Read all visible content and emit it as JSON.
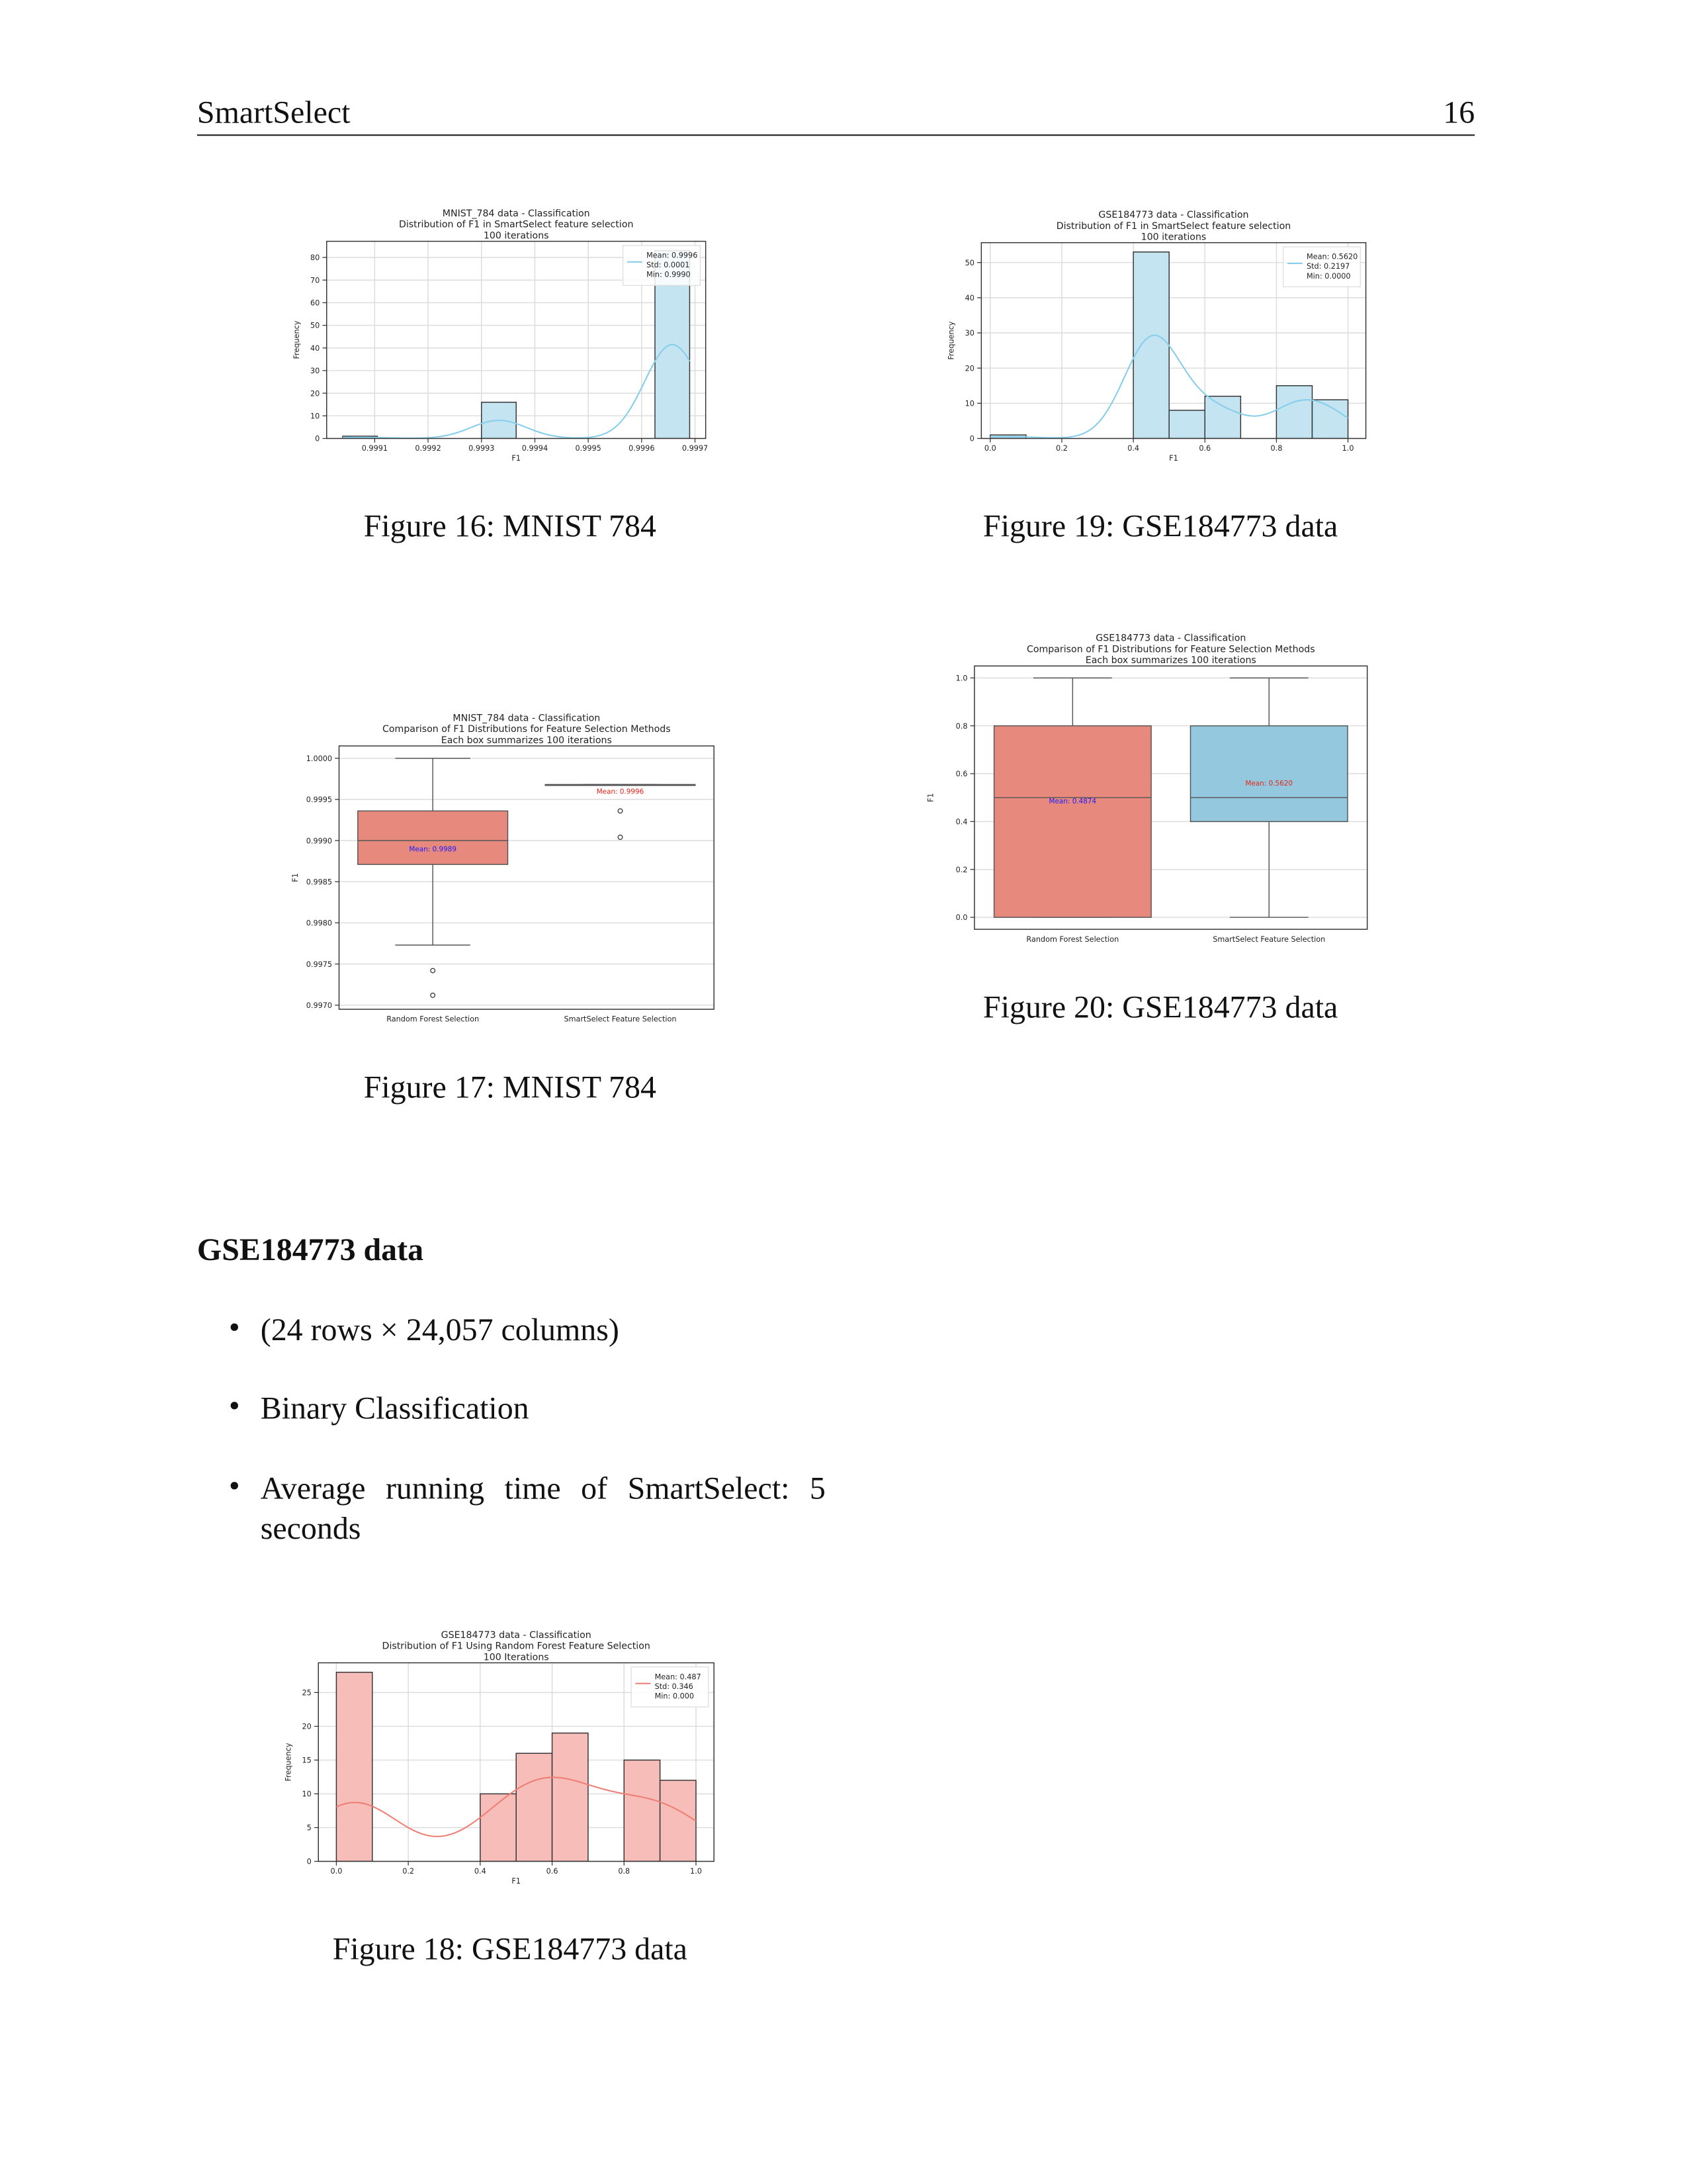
{
  "header": {
    "title": "SmartSelect",
    "page": 16
  },
  "chart_data": [
    {
      "type": "histogram",
      "title": [
        "MNIST_784 data - Classification",
        "Distribution of F1 in SmartSelect feature selection",
        "100 iterations"
      ],
      "caption": "Figure 16: MNIST 784",
      "xlabel": "F1",
      "ylabel": "Frequency",
      "bins": [
        0.99904,
        0.999105,
        0.99917,
        0.999235,
        0.9993,
        0.999365,
        0.99943,
        0.999495,
        0.99956,
        0.999625,
        0.99969
      ],
      "values": [
        1,
        0,
        0,
        0,
        16,
        0,
        0,
        0,
        0,
        83
      ],
      "color": "#c4e4f2",
      "line_color": "#87ceeb",
      "xlim": [
        0.99901,
        0.99972
      ],
      "xticks": [
        0.9991,
        0.9992,
        0.9993,
        0.9994,
        0.9995,
        0.9996,
        0.9997
      ],
      "ylim": [
        0,
        87.15
      ],
      "yticks": [
        0,
        10,
        20,
        30,
        40,
        50,
        60,
        70,
        80
      ],
      "legend_labels": [
        "Mean: 0.9996",
        "Std: 0.0001",
        "Min: 0.9990"
      ],
      "legend_loc": "upper right",
      "grid": true
    },
    {
      "type": "histogram",
      "title": [
        "GSE184773 data - Classification",
        "Distribution of F1 in SmartSelect feature selection",
        "100 iterations"
      ],
      "caption": "Figure 19: GSE184773 data",
      "xlabel": "F1",
      "ylabel": "Frequency",
      "bins": [
        0,
        0.1,
        0.2,
        0.3,
        0.4,
        0.5,
        0.6,
        0.7,
        0.8,
        0.9,
        1
      ],
      "values": [
        1,
        0,
        0,
        0,
        53,
        8,
        12,
        0,
        15,
        11
      ],
      "color": "#c4e4f2",
      "line_color": "#87ceeb",
      "xlim": [
        -0.025,
        1.05
      ],
      "xticks": [
        {
          "value": 0,
          "label": "0.0"
        },
        0.2,
        0.4,
        0.6,
        0.8,
        {
          "value": 1,
          "label": "1.0"
        }
      ],
      "ylim": [
        0,
        55.65
      ],
      "yticks": [
        0,
        10,
        20,
        30,
        40,
        50
      ],
      "legend_labels": [
        "Mean: 0.5620",
        "Std: 0.2197",
        "Min: 0.0000"
      ],
      "legend_loc": "upper right",
      "grid": true
    },
    {
      "type": "box",
      "title": [
        "MNIST_784 data - Classification",
        "Comparison of F1 Distributions for Feature Selection Methods",
        "Each box summarizes 100 iterations"
      ],
      "caption": "Figure 17: MNIST 784",
      "ylabel": "F1",
      "categories": [
        "Random Forest Selection",
        "SmartSelect Feature Selection"
      ],
      "boxes": [
        {
          "whislo": 0.99773,
          "q1": 0.99871,
          "median": 0.999,
          "q3": 0.99936,
          "whishi": 1.0,
          "fliers": [
            0.99742,
            0.99712
          ],
          "mean": 0.9989,
          "mean_label": "Mean: 0.9989",
          "color": "#e8897e",
          "mean_color": "#1a1aff"
        },
        {
          "whislo": 0.99968,
          "q1": 0.99968,
          "median": 0.99968,
          "q3": 0.99968,
          "whishi": 0.99968,
          "fliers": [
            0.99936,
            0.99904
          ],
          "mean": 0.9996,
          "mean_label": "Mean: 0.9996",
          "color": "#93c8df",
          "mean_color": "#e8241a"
        }
      ],
      "ylim": [
        0.99695,
        1.00015
      ],
      "yticks": [
        {
          "value": 0.997,
          "label": "0.9970"
        },
        0.9975,
        {
          "value": 0.998,
          "label": "0.9980"
        },
        0.9985,
        {
          "value": 0.999,
          "label": "0.9990"
        },
        0.9995,
        {
          "value": 1.0,
          "label": "1.0000"
        }
      ],
      "grid": true
    },
    {
      "type": "box",
      "title": [
        "GSE184773 data - Classification",
        "Comparison of F1 Distributions for Feature Selection Methods",
        "Each box summarizes 100 iterations"
      ],
      "caption": "Figure 20: GSE184773 data",
      "ylabel": "F1",
      "categories": [
        "Random Forest Selection",
        "SmartSelect Feature Selection"
      ],
      "boxes": [
        {
          "whislo": 0,
          "q1": 0,
          "median": 0.5,
          "q3": 0.8,
          "whishi": 1.0,
          "fliers": [],
          "mean": 0.4874,
          "mean_label": "Mean: 0.4874",
          "color": "#e8897e",
          "mean_color": "#1a1aff"
        },
        {
          "whislo": 0,
          "q1": 0.4,
          "median": 0.5,
          "q3": 0.8,
          "whishi": 1.0,
          "fliers": [],
          "mean": 0.562,
          "mean_label": "Mean: 0.5620",
          "color": "#93c8df",
          "mean_color": "#e8241a"
        }
      ],
      "ylim": [
        -0.05,
        1.05
      ],
      "yticks": [
        {
          "value": 0,
          "label": "0.0"
        },
        0.2,
        0.4,
        0.6,
        0.8,
        {
          "value": 1,
          "label": "1.0"
        }
      ],
      "grid": true
    },
    {
      "type": "histogram",
      "title": [
        "GSE184773 data - Classification",
        "Distribution of F1 Using Random Forest Feature Selection",
        "100 Iterations"
      ],
      "caption": "Figure 18: GSE184773 data",
      "xlabel": "F1",
      "ylabel": "Frequency",
      "bins": [
        0,
        0.1,
        0.2,
        0.3,
        0.4,
        0.5,
        0.6,
        0.7,
        0.8,
        0.9,
        1
      ],
      "values": [
        28,
        0,
        0,
        0,
        10,
        16,
        19,
        0,
        15,
        12
      ],
      "color": "#f7bdb8",
      "line_color": "#ef7f76",
      "xlim": [
        -0.05,
        1.05
      ],
      "xticks": [
        {
          "value": 0,
          "label": "0.0"
        },
        0.2,
        0.4,
        0.6,
        0.8,
        {
          "value": 1,
          "label": "1.0"
        }
      ],
      "ylim": [
        0,
        29.4
      ],
      "yticks": [
        0,
        5,
        10,
        15,
        20,
        25
      ],
      "legend_labels": [
        "Mean: 0.487",
        "Std: 0.346",
        "Min: 0.000"
      ],
      "legend_loc": "upper right",
      "grid": true
    }
  ],
  "section": {
    "heading": "GSE184773 data",
    "bullets": [
      "(24 rows × 24,057 columns)",
      "Binary Classification",
      "Average running time of SmartSelect: 5 seconds"
    ]
  }
}
